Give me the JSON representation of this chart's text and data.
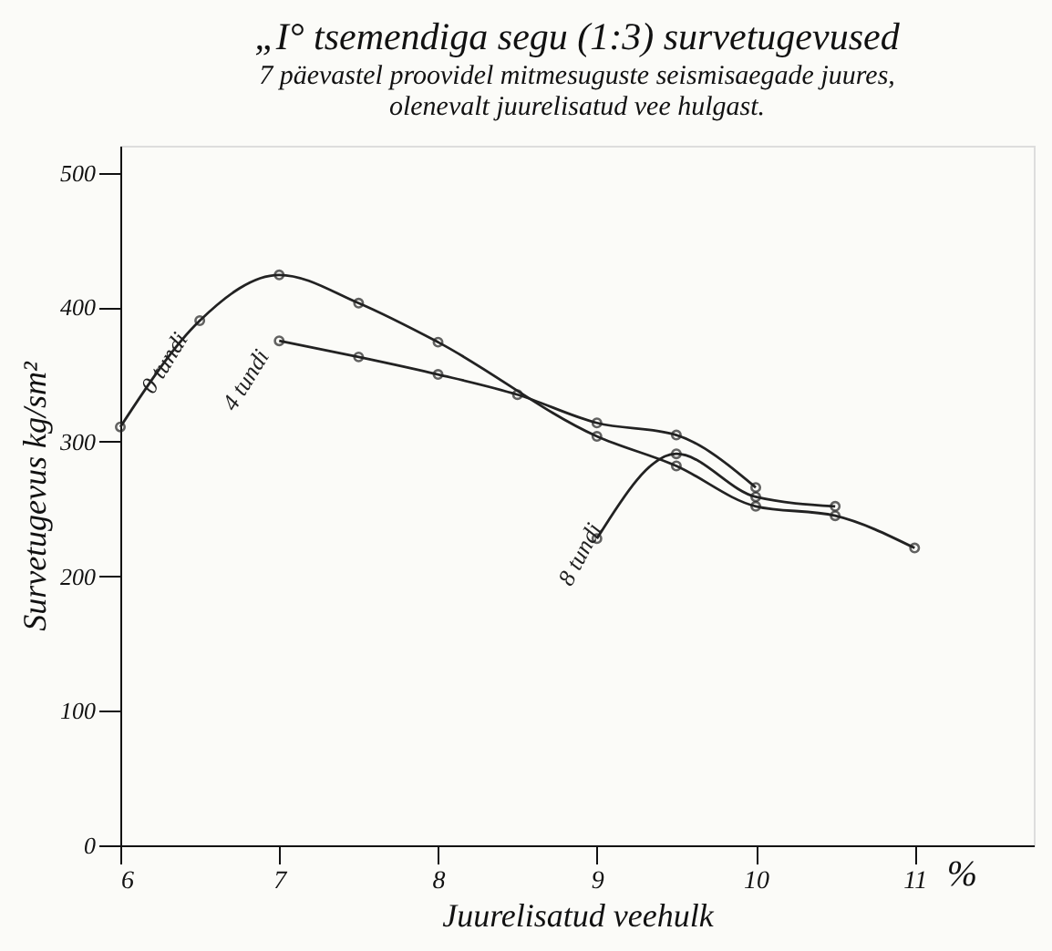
{
  "chart_data": {
    "type": "line",
    "title": "„I° tsemendiga segu (1:3) survetugevused",
    "subtitle": "7 päevastel proovidel mitmesuguste seismisaegade juures,\nolenevalt juurelisatud vee hulgast.",
    "xlabel": "Juurelisatud veehulk",
    "ylabel": "Survetugevus  kg/sm²",
    "annotations": [
      "%"
    ],
    "series": [
      {
        "name": "0 tundi",
        "color": "#222222",
        "x": [
          6,
          6.5,
          7,
          7.5,
          8,
          9,
          9.5,
          10,
          10.5,
          11
        ],
        "values": [
          311,
          390,
          424,
          403,
          374,
          304,
          282,
          252,
          245,
          221
        ]
      },
      {
        "name": "4 tundi",
        "color": "#222222",
        "x": [
          7,
          7.5,
          8,
          8.5,
          9,
          9.5,
          10
        ],
        "values": [
          375,
          363,
          350,
          335,
          314,
          305,
          266
        ]
      },
      {
        "name": "8 tundi",
        "color": "#222222",
        "x": [
          9,
          9.5,
          10,
          10.5
        ],
        "values": [
          228,
          291,
          259,
          252
        ]
      }
    ],
    "xlim": [
      6,
      11.75
    ],
    "xticks": [
      6,
      7,
      8,
      9,
      10,
      11
    ],
    "ylim": [
      0,
      520
    ],
    "yticks": [
      0,
      100,
      200,
      300,
      400,
      500
    ],
    "grid": false,
    "legend": false,
    "marker": "circle",
    "line_style": "solid"
  }
}
